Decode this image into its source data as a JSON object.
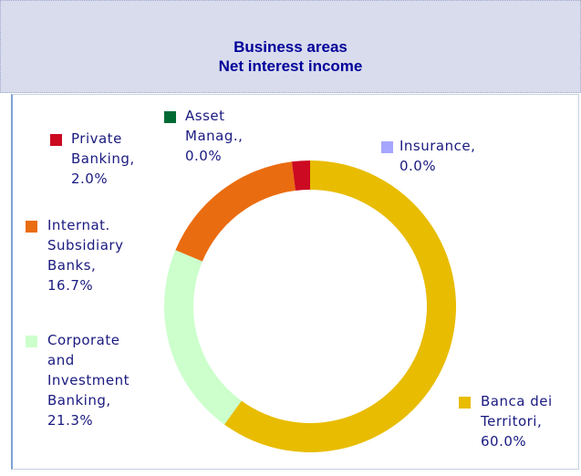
{
  "chart_data": {
    "type": "donut",
    "title": "Business areas",
    "subtitle": "Net interest income",
    "categories": [
      "Banca dei Territori,",
      "Corporate and Investment Banking,",
      "Internat. Subsidiary Banks,",
      "Private Banking,",
      "Asset Manag.,",
      "Insurance,"
    ],
    "values": [
      60.0,
      21.3,
      16.7,
      2.0,
      0.0,
      0.0
    ],
    "value_labels": [
      "60.0%",
      "21.3%",
      "16.7%",
      "2.0%",
      "0.0%",
      "0.0%"
    ],
    "colors": [
      "#e8bc00",
      "#ccffcc",
      "#ea6c10",
      "#cc0a22",
      "#006a35",
      "#a6a6ff"
    ]
  }
}
